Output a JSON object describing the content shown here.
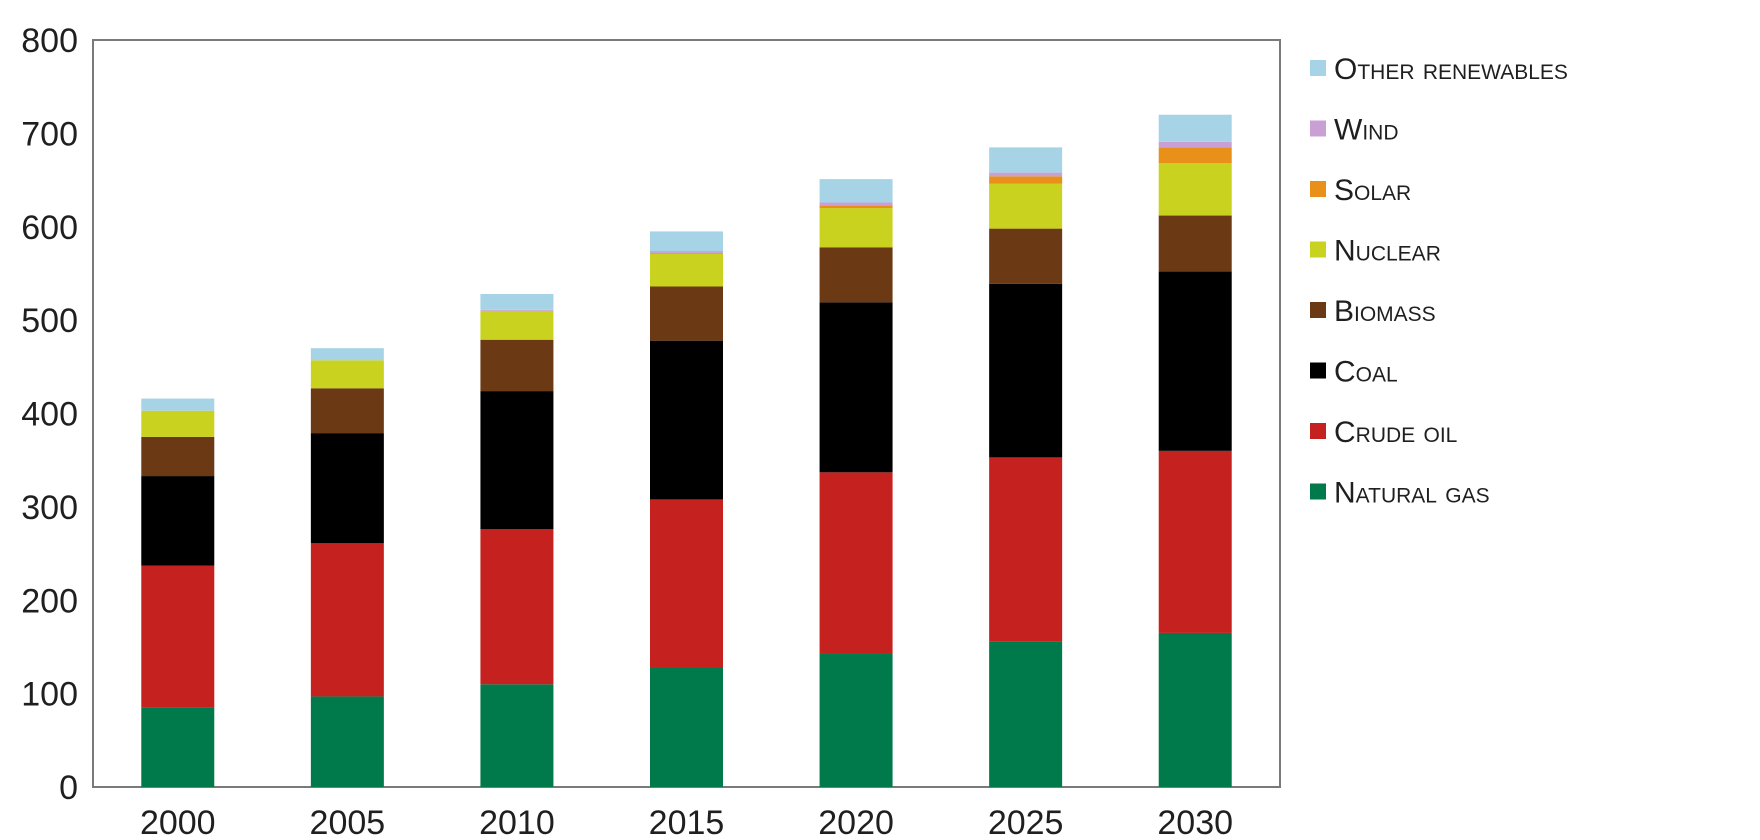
{
  "chart_data": {
    "type": "bar",
    "stacked": true,
    "title": "",
    "xlabel": "",
    "ylabel": "",
    "ylim": [
      0,
      800
    ],
    "yticks": [
      0,
      100,
      200,
      300,
      400,
      500,
      600,
      700,
      800
    ],
    "categories": [
      "2000",
      "2005",
      "2010",
      "2015",
      "2020",
      "2025",
      "2030"
    ],
    "grid": false,
    "legend_position": "right",
    "series": [
      {
        "name": "Natural gas",
        "color": "#007a4a",
        "values": [
          85,
          97,
          110,
          128,
          143,
          156,
          165
        ]
      },
      {
        "name": "Crude oil",
        "color": "#c5221f",
        "values": [
          152,
          164,
          166,
          180,
          194,
          197,
          195
        ]
      },
      {
        "name": "Coal",
        "color": "#000000",
        "values": [
          96,
          118,
          148,
          170,
          182,
          186,
          192
        ]
      },
      {
        "name": "Biomass",
        "color": "#6b3a14",
        "values": [
          42,
          48,
          55,
          58,
          59,
          59,
          60
        ]
      },
      {
        "name": "Nuclear",
        "color": "#c9d21e",
        "values": [
          28,
          30,
          31,
          35,
          42,
          48,
          56
        ]
      },
      {
        "name": "Solar",
        "color": "#e8901a",
        "values": [
          0,
          0,
          0,
          1,
          3,
          8,
          17
        ]
      },
      {
        "name": "Wind",
        "color": "#c8a0d4",
        "values": [
          0,
          0,
          1,
          2,
          3,
          4,
          6
        ]
      },
      {
        "name": "Other renewables",
        "color": "#a6d4e6",
        "values": [
          13,
          13,
          17,
          21,
          25,
          27,
          29
        ]
      }
    ]
  }
}
